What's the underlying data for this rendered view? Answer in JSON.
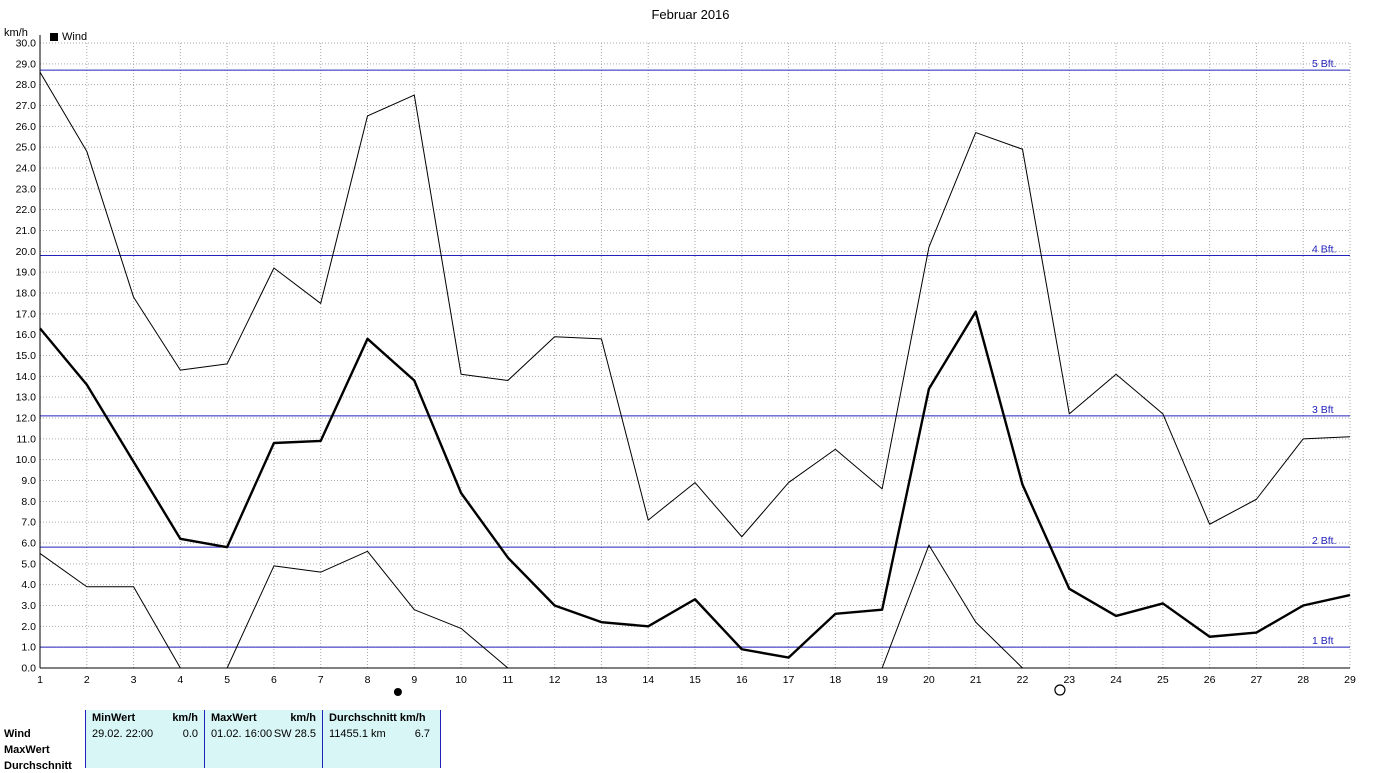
{
  "title": "Februar 2016",
  "y_axis_unit": "km/h",
  "legend": {
    "label": "Wind",
    "swatch_color": "#000000"
  },
  "chart_data": {
    "type": "line",
    "title": "Februar 2016",
    "ylabel": "km/h",
    "ylim": [
      0,
      30
    ],
    "y_tick_step": 1,
    "grid": true,
    "x": [
      1,
      2,
      3,
      4,
      5,
      6,
      7,
      8,
      9,
      10,
      11,
      12,
      13,
      14,
      15,
      16,
      17,
      18,
      19,
      20,
      21,
      22,
      23,
      24,
      25,
      26,
      27,
      28,
      29
    ],
    "x_tick_labels": [
      "1",
      "2",
      "3",
      "4",
      "5",
      "6",
      "7",
      "8",
      "9",
      "10",
      "11",
      "12",
      "13",
      "14",
      "15",
      "16",
      "17",
      "18",
      "19",
      "20",
      "21",
      "22",
      "23",
      "24",
      "25",
      "26",
      "27",
      "28",
      "29"
    ],
    "series": [
      {
        "name": "MaxWert",
        "stroke_width": 1,
        "values": [
          28.6,
          24.8,
          17.8,
          14.3,
          14.6,
          19.2,
          17.5,
          26.5,
          27.5,
          14.1,
          13.8,
          15.9,
          15.8,
          7.1,
          8.9,
          6.3,
          8.9,
          10.5,
          8.6,
          20.2,
          25.7,
          24.9,
          12.2,
          14.1,
          12.2,
          6.9,
          8.1,
          11.0,
          11.1
        ]
      },
      {
        "name": "Wind",
        "stroke_width": 2.4,
        "values": [
          16.3,
          13.6,
          9.9,
          6.2,
          5.8,
          10.8,
          10.9,
          15.8,
          13.8,
          8.4,
          5.3,
          3.0,
          2.2,
          2.0,
          3.3,
          0.9,
          0.5,
          2.6,
          2.8,
          13.4,
          17.1,
          8.8,
          3.8,
          2.5,
          3.1,
          1.5,
          1.7,
          3.0,
          3.5
        ]
      },
      {
        "name": "MinWert",
        "stroke_width": 1,
        "values": [
          5.5,
          3.9,
          3.9,
          0.0,
          0.0,
          4.9,
          4.6,
          5.6,
          2.8,
          1.9,
          0.0,
          0.0,
          0.0,
          0.0,
          0.0,
          0.0,
          0.0,
          0.0,
          0.0,
          5.9,
          2.2,
          0.0,
          0.0,
          0.0,
          0.0,
          0.0,
          0.0,
          0.0,
          0.0
        ]
      }
    ],
    "reference_lines": [
      {
        "value": 1.0,
        "label": "1 Bft"
      },
      {
        "value": 5.8,
        "label": "2 Bft."
      },
      {
        "value": 12.1,
        "label": "3 Bft"
      },
      {
        "value": 19.8,
        "label": "4 Bft."
      },
      {
        "value": 28.7,
        "label": "5 Bft."
      }
    ],
    "moon_markers": [
      {
        "day": 8.65,
        "symbol": "filled-circle",
        "name": "new-moon-marker"
      },
      {
        "day": 22.8,
        "symbol": "open-circle",
        "name": "full-moon-marker"
      }
    ],
    "colors": {
      "series": "#000000",
      "grid": "#aaaaaa",
      "reference": "#2222bb",
      "axis": "#000000"
    },
    "legend_position": "top-left"
  },
  "summary_table": {
    "background": "#d9f6f6",
    "divider_color": "#2222bb",
    "row_labels": [
      "Wind",
      "MaxWert",
      "Durchschnitt"
    ],
    "headers": {
      "min": "MinWert",
      "min_unit": "km/h",
      "max": "MaxWert",
      "max_unit": "km/h",
      "avg": "Durchschnitt km/h"
    },
    "wind_row": {
      "min_date": "29.02. 22:00",
      "min_value": "0.0",
      "max_date": "01.02. 16:00",
      "max_value": "SW 28.5",
      "avg_distance": "11455.1 km",
      "avg_value": "6.7"
    }
  }
}
